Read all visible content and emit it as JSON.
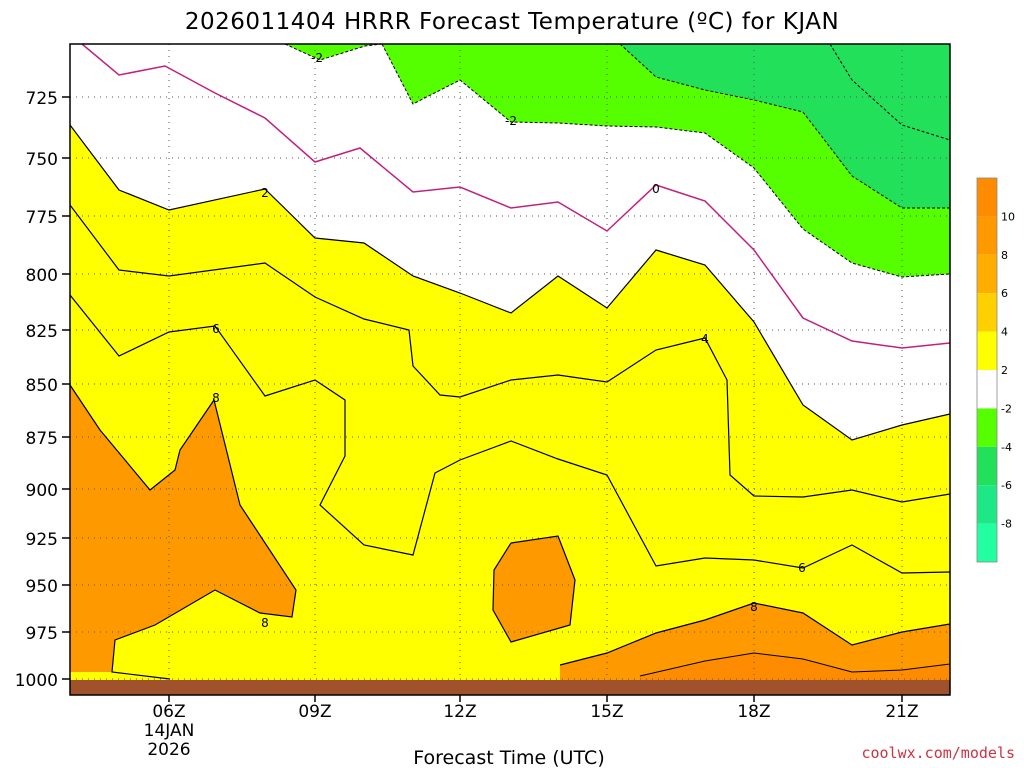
{
  "chart_data": {
    "type": "heatmap",
    "title": "2026011404 HRRR Forecast Temperature (ºC) for KJAN",
    "xlabel": "Forecast Time (UTC)",
    "credit": "coolwx.com/models",
    "x_ticks": [
      "06Z",
      "09Z",
      "12Z",
      "15Z",
      "18Z",
      "21Z"
    ],
    "x_date_label": [
      "14JAN",
      "2026"
    ],
    "y_ticks": [
      "725",
      "750",
      "775",
      "800",
      "825",
      "850",
      "875",
      "900",
      "925",
      "950",
      "975",
      "1000"
    ],
    "colorbar": {
      "ticks": [
        "10",
        "8",
        "6",
        "4",
        "2",
        "-2",
        "-4",
        "-6",
        "-8"
      ],
      "bins": [
        {
          "range": [
            10,
            12
          ],
          "color": "#ff8c00"
        },
        {
          "range": [
            8,
            10
          ],
          "color": "#ff9900"
        },
        {
          "range": [
            6,
            8
          ],
          "color": "#ffae00"
        },
        {
          "range": [
            4,
            6
          ],
          "color": "#ffd000"
        },
        {
          "range": [
            2,
            4
          ],
          "color": "#ffff00"
        },
        {
          "range": [
            -2,
            2
          ],
          "color": "#ffffff"
        },
        {
          "range": [
            -4,
            -2
          ],
          "color": "#55ff00"
        },
        {
          "range": [
            -6,
            -4
          ],
          "color": "#22e05a"
        },
        {
          "range": [
            -8,
            -6
          ],
          "color": "#1ee886"
        },
        {
          "range": [
            -10,
            -8
          ],
          "color": "#22ffa0"
        }
      ]
    },
    "colors": {
      "ground": "#a0522d",
      "freezing_line": "#c02080",
      "contour": "#000000"
    },
    "contour_labels": [
      {
        "text": "-2",
        "level": -2
      },
      {
        "text": "-2",
        "level": -2
      },
      {
        "text": "0",
        "level": 0
      },
      {
        "text": "2",
        "level": 2
      },
      {
        "text": "4",
        "level": 4
      },
      {
        "text": "6",
        "level": 6
      },
      {
        "text": "6",
        "level": 6
      },
      {
        "text": "8",
        "level": 8
      },
      {
        "text": "8",
        "level": 8
      },
      {
        "text": "8",
        "level": 8
      }
    ]
  }
}
